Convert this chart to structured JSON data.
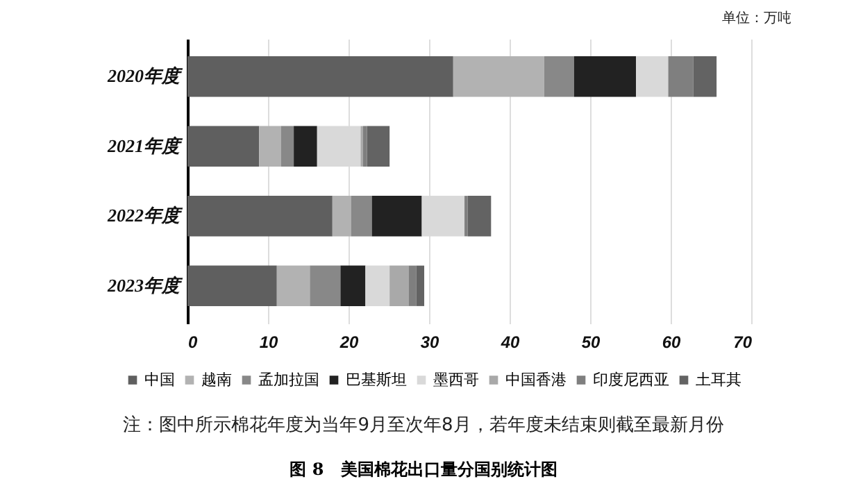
{
  "chart_data": {
    "type": "bar",
    "orientation": "horizontal",
    "stacked": true,
    "title": "图 8　美国棉花出口量分国别统计图",
    "categories": [
      "2020年度",
      "2021年度",
      "2022年度",
      "2023年度"
    ],
    "series": [
      {
        "name": "中国",
        "color": "#5f5f5f",
        "values": [
          33.0,
          8.9,
          18.0,
          11.1
        ]
      },
      {
        "name": "越南",
        "color": "#b2b2b2",
        "values": [
          11.3,
          2.7,
          2.3,
          4.1
        ]
      },
      {
        "name": "孟加拉国",
        "color": "#888888",
        "values": [
          3.7,
          1.6,
          2.6,
          3.8
        ]
      },
      {
        "name": "巴基斯坦",
        "color": "#222222",
        "values": [
          7.7,
          2.9,
          6.2,
          3.1
        ]
      },
      {
        "name": "墨西哥",
        "color": "#d9d9d9",
        "values": [
          4.0,
          5.4,
          5.3,
          3.0
        ]
      },
      {
        "name": "中国香港",
        "color": "#a9a9a9",
        "values": [
          null,
          0.3,
          null,
          2.4
        ]
      },
      {
        "name": "印度尼西亚",
        "color": "#7f7f7f",
        "values": [
          3.1,
          0.5,
          0.4,
          0.9
        ]
      },
      {
        "name": "土耳其",
        "color": "#636363",
        "values": [
          2.9,
          2.8,
          2.9,
          1.0
        ]
      }
    ],
    "xlim": [
      0,
      70
    ],
    "xticks": [
      0,
      10,
      20,
      30,
      40,
      50,
      60,
      70
    ],
    "grid": "x",
    "legend": "bottom",
    "annotations": [
      "单位：万吨",
      "注：图中所示棉花年度为当年9月至次年8月，若年度未结束则截至最新月份"
    ]
  }
}
